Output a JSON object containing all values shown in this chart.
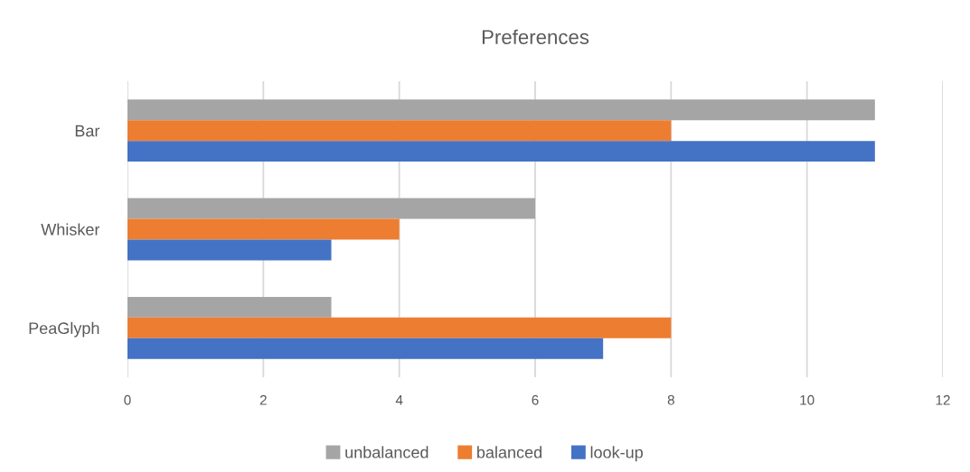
{
  "chart_data": {
    "type": "bar",
    "orientation": "horizontal",
    "title": "Preferences",
    "categories": [
      "Bar",
      "Whisker",
      "PeaGlyph"
    ],
    "series": [
      {
        "name": "unbalanced",
        "color": "#a5a5a5",
        "values": [
          11,
          6,
          3
        ]
      },
      {
        "name": "balanced",
        "color": "#ed7d31",
        "values": [
          8,
          4,
          8
        ]
      },
      {
        "name": "look-up",
        "color": "#4472c4",
        "values": [
          11,
          3,
          7
        ]
      }
    ],
    "xlim": [
      0,
      12
    ],
    "xticks": [
      0,
      2,
      4,
      6,
      8,
      10,
      12
    ],
    "grid": "x",
    "legend": "bottom"
  }
}
